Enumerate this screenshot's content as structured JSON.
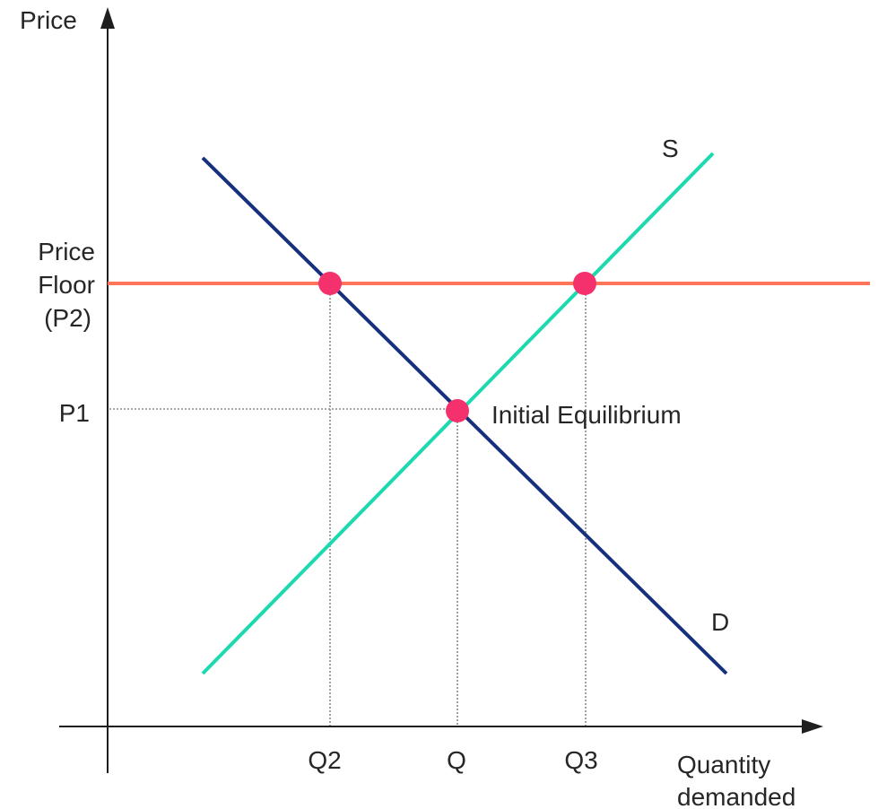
{
  "axes": {
    "y_label": "Price",
    "x_label_line1": "Quantity",
    "x_label_line2": "demanded"
  },
  "price_labels": {
    "floor_line1": "Price",
    "floor_line2": "Floor",
    "floor_line3": "(P2)",
    "p1": "P1"
  },
  "quantity_labels": {
    "q2": "Q2",
    "q": "Q",
    "q3": "Q3"
  },
  "curves": {
    "supply_label": "S",
    "demand_label": "D"
  },
  "annotations": {
    "equilibrium": "Initial Equilibrium"
  },
  "colors": {
    "supply": "#1dd9b0",
    "demand": "#17307e",
    "price_floor": "#ff7559",
    "points": "#f5316d",
    "axes": "#1f1f1f"
  }
}
